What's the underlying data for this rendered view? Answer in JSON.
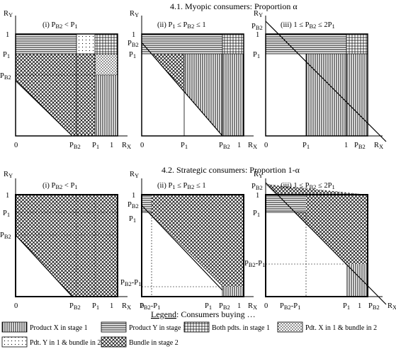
{
  "section1": {
    "title": "4.1. Myopic consumers: Proportion α"
  },
  "section2": {
    "title": "4.2. Strategic consumers: Proportion 1-α"
  },
  "panels": [
    {
      "label": "(i) P_B2 < P_1",
      "label_main": "(i) ",
      "label_rest": "P",
      "label_sub": "B2",
      "label_tail": " < P",
      "label_sub2": "1"
    },
    {
      "label": "(ii) P1 ≤ PB2 ≤ 1",
      "label_main": "(ii) P",
      "label_sub": "1",
      "label_rest": " ≤ P",
      "label_sub2": "B2",
      "label_tail": " ≤ 1"
    },
    {
      "label": "(iii) 1 ≤ PB2 ≤ 2P1",
      "label_main": "(iii) 1 ≤ P",
      "label_sub": "B2",
      "label_rest": " ≤ 2P",
      "label_sub2": "1"
    }
  ],
  "axes": {
    "ry": "R",
    "ry_sub": "Y",
    "rx": "R",
    "rx_sub": "X",
    "zero": "0",
    "one": "1",
    "p1": "P",
    "p1_sub": "1",
    "pb2": "P",
    "pb2_sub": "B2",
    "pb2_minus_p1": "P",
    "pb2_minus_p1_sub": "B2",
    "pb2_minus_p1_tail": "-P",
    "pb2_minus_p1_tail_sub": "1"
  },
  "legend": {
    "title_underlined": "Legend",
    "title_rest": ": Consumers buying …",
    "items": [
      {
        "label": "Product X in stage 1",
        "pattern": "vertical-lines"
      },
      {
        "label": "Product Y in stage 1",
        "pattern": "horizontal-lines"
      },
      {
        "label": "Both pdts. in stage 1",
        "pattern": "grid"
      },
      {
        "label": "Pdt. X in 1 & bundle in 2",
        "pattern": "dots"
      },
      {
        "label": "Pdt. Y in 1 & bundle in 2",
        "pattern": "sparse-dots"
      },
      {
        "label": "Bundle in stage 2",
        "pattern": "crosshatch"
      }
    ]
  }
}
